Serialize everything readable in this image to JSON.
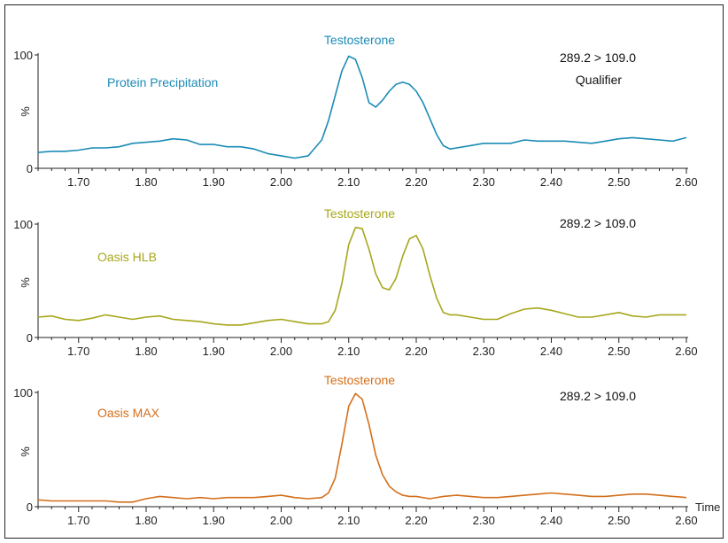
{
  "chart_data": [
    {
      "type": "line",
      "peak_label": "Testosterone",
      "method_label": "Protein Precipitation",
      "transition": "289.2 > 109.0",
      "qualifier": "Qualifier",
      "color": "#1b8bb5",
      "ylabel": "%",
      "ylim": [
        0,
        100
      ],
      "xlim": [
        1.64,
        2.6
      ],
      "yticks": [
        "0",
        "100"
      ],
      "xticks": [
        "1.70",
        "1.80",
        "1.90",
        "2.00",
        "2.10",
        "2.20",
        "2.30",
        "2.40",
        "2.50",
        "2.60"
      ],
      "series": [
        {
          "x": [
            1.64,
            1.66,
            1.68,
            1.7,
            1.72,
            1.74,
            1.76,
            1.78,
            1.8,
            1.82,
            1.84,
            1.86,
            1.88,
            1.9,
            1.92,
            1.94,
            1.96,
            1.98,
            2.0,
            2.02,
            2.04,
            2.06,
            2.07,
            2.08,
            2.09,
            2.1,
            2.11,
            2.12,
            2.13,
            2.14,
            2.15,
            2.16,
            2.17,
            2.18,
            2.19,
            2.2,
            2.21,
            2.22,
            2.23,
            2.24,
            2.25,
            2.26,
            2.27,
            2.28,
            2.3,
            2.32,
            2.34,
            2.36,
            2.38,
            2.4,
            2.42,
            2.44,
            2.46,
            2.48,
            2.5,
            2.52,
            2.54,
            2.56,
            2.58,
            2.6
          ],
          "y": [
            14,
            15,
            15,
            16,
            18,
            18,
            19,
            22,
            23,
            24,
            26,
            25,
            21,
            21,
            19,
            19,
            17,
            13,
            11,
            9,
            11,
            25,
            42,
            64,
            86,
            99,
            96,
            80,
            58,
            54,
            60,
            68,
            74,
            76,
            74,
            68,
            58,
            44,
            30,
            20,
            17,
            18,
            19,
            20,
            22,
            22,
            22,
            25,
            24,
            24,
            24,
            23,
            22,
            24,
            26,
            27,
            26,
            25,
            24,
            27
          ]
        }
      ]
    },
    {
      "type": "line",
      "peak_label": "Testosterone",
      "method_label": "Oasis HLB",
      "transition": "289.2 > 109.0",
      "color": "#a7a61c",
      "ylabel": "%",
      "ylim": [
        0,
        100
      ],
      "xlim": [
        1.64,
        2.6
      ],
      "yticks": [
        "0",
        "100"
      ],
      "xticks": [
        "1.70",
        "1.80",
        "1.90",
        "2.00",
        "2.10",
        "2.20",
        "2.30",
        "2.40",
        "2.50",
        "2.60"
      ],
      "series": [
        {
          "x": [
            1.64,
            1.66,
            1.68,
            1.7,
            1.72,
            1.74,
            1.76,
            1.78,
            1.8,
            1.82,
            1.84,
            1.86,
            1.88,
            1.9,
            1.92,
            1.94,
            1.96,
            1.98,
            2.0,
            2.02,
            2.04,
            2.06,
            2.07,
            2.08,
            2.09,
            2.1,
            2.11,
            2.12,
            2.13,
            2.14,
            2.15,
            2.16,
            2.17,
            2.18,
            2.19,
            2.2,
            2.21,
            2.22,
            2.23,
            2.24,
            2.25,
            2.26,
            2.28,
            2.3,
            2.32,
            2.34,
            2.36,
            2.38,
            2.4,
            2.42,
            2.44,
            2.46,
            2.48,
            2.5,
            2.52,
            2.54,
            2.56,
            2.58,
            2.6
          ],
          "y": [
            18,
            19,
            16,
            15,
            17,
            20,
            18,
            16,
            18,
            19,
            16,
            15,
            14,
            12,
            11,
            11,
            13,
            15,
            16,
            14,
            12,
            12,
            14,
            24,
            48,
            82,
            97,
            96,
            78,
            56,
            44,
            42,
            52,
            72,
            87,
            90,
            78,
            55,
            35,
            22,
            20,
            20,
            18,
            16,
            16,
            21,
            25,
            26,
            24,
            21,
            18,
            18,
            20,
            22,
            19,
            18,
            20,
            20,
            20
          ]
        }
      ]
    },
    {
      "type": "line",
      "peak_label": "Testosterone",
      "method_label": "Oasis MAX",
      "transition": "289.2 > 109.0",
      "color": "#d46f1a",
      "ylabel": "%",
      "xlabel": "Time",
      "ylim": [
        0,
        100
      ],
      "xlim": [
        1.64,
        2.6
      ],
      "yticks": [
        "0",
        "100"
      ],
      "xticks": [
        "1.70",
        "1.80",
        "1.90",
        "2.00",
        "2.10",
        "2.20",
        "2.30",
        "2.40",
        "2.50",
        "2.60"
      ],
      "series": [
        {
          "x": [
            1.64,
            1.66,
            1.68,
            1.7,
            1.72,
            1.74,
            1.76,
            1.78,
            1.8,
            1.82,
            1.84,
            1.86,
            1.88,
            1.9,
            1.92,
            1.94,
            1.96,
            1.98,
            2.0,
            2.02,
            2.04,
            2.06,
            2.07,
            2.08,
            2.09,
            2.1,
            2.11,
            2.12,
            2.13,
            2.14,
            2.15,
            2.16,
            2.17,
            2.18,
            2.19,
            2.2,
            2.22,
            2.24,
            2.26,
            2.28,
            2.3,
            2.32,
            2.34,
            2.36,
            2.38,
            2.4,
            2.42,
            2.44,
            2.46,
            2.48,
            2.5,
            2.52,
            2.54,
            2.56,
            2.58,
            2.6
          ],
          "y": [
            6,
            5,
            5,
            5,
            5,
            5,
            4,
            4,
            7,
            9,
            8,
            7,
            8,
            7,
            8,
            8,
            8,
            9,
            10,
            8,
            7,
            8,
            12,
            25,
            55,
            88,
            99,
            94,
            72,
            45,
            28,
            18,
            13,
            10,
            9,
            9,
            7,
            9,
            10,
            9,
            8,
            8,
            9,
            10,
            11,
            12,
            11,
            10,
            9,
            9,
            10,
            11,
            11,
            10,
            9,
            8
          ]
        }
      ]
    }
  ]
}
